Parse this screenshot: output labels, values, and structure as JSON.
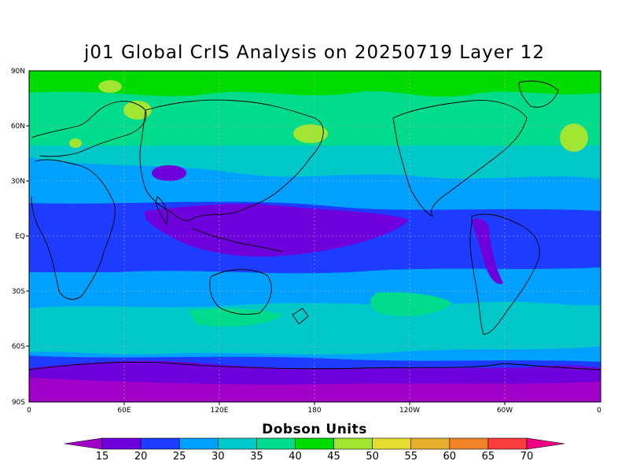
{
  "title": "j01 Global CrIS Analysis on 20250719 Layer 12",
  "colorbar": {
    "title": "Dobson Units",
    "labels": [
      "15",
      "20",
      "25",
      "30",
      "35",
      "40",
      "45",
      "50",
      "55",
      "60",
      "65",
      "70"
    ],
    "colors": [
      "#a000c8",
      "#6e00dc",
      "#1e3cff",
      "#00a0ff",
      "#00c8c8",
      "#00dc8c",
      "#00dc00",
      "#a0e632",
      "#e6dc32",
      "#e6af2d",
      "#f08228",
      "#fa3c3c",
      "#f00082"
    ]
  },
  "axes": {
    "lat_labels": [
      "90N",
      "60N",
      "30N",
      "EQ",
      "30S",
      "60S",
      "90S"
    ],
    "lon_labels": [
      "0",
      "60E",
      "120E",
      "180",
      "120W",
      "60W",
      "0"
    ]
  }
}
